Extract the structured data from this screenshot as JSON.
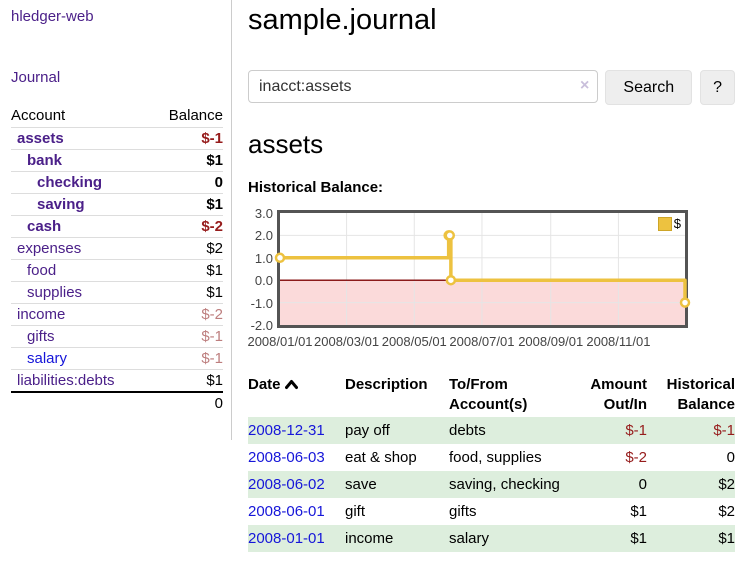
{
  "sidebar": {
    "brand": "hledger-web",
    "nav": {
      "journal": "Journal"
    },
    "table": {
      "account_header": "Account",
      "balance_header": "Balance"
    },
    "accounts": [
      {
        "name": "assets",
        "indent": 1,
        "bold": true,
        "link_color": "purple",
        "balance": "$-1",
        "balance_class": "neg"
      },
      {
        "name": "bank",
        "indent": 2,
        "bold": true,
        "link_color": "purple",
        "balance": "$1",
        "balance_class": "pos"
      },
      {
        "name": "checking",
        "indent": 3,
        "bold": true,
        "link_color": "purple",
        "balance": "0",
        "balance_class": "pos"
      },
      {
        "name": "saving",
        "indent": 3,
        "bold": true,
        "link_color": "purple",
        "balance": "$1",
        "balance_class": "pos"
      },
      {
        "name": "cash",
        "indent": 2,
        "bold": true,
        "link_color": "purple",
        "balance": "$-2",
        "balance_class": "neg"
      },
      {
        "name": "expenses",
        "indent": 1,
        "bold": false,
        "link_color": "purple",
        "balance": "$2",
        "balance_class": "pos"
      },
      {
        "name": "food",
        "indent": 2,
        "bold": false,
        "link_color": "purple",
        "balance": "$1",
        "balance_class": "pos"
      },
      {
        "name": "supplies",
        "indent": 2,
        "bold": false,
        "link_color": "purple",
        "balance": "$1",
        "balance_class": "pos"
      },
      {
        "name": "income",
        "indent": 1,
        "bold": false,
        "link_color": "purple",
        "balance": "$-2",
        "balance_class": "neg-faded"
      },
      {
        "name": "gifts",
        "indent": 2,
        "bold": false,
        "link_color": "purple",
        "balance": "$-1",
        "balance_class": "neg-faded"
      },
      {
        "name": "salary",
        "indent": 2,
        "bold": false,
        "link_color": "blue",
        "balance": "$-1",
        "balance_class": "neg-faded"
      },
      {
        "name": "liabilities:debts",
        "indent": 1,
        "bold": false,
        "link_color": "purple",
        "balance": "$1",
        "balance_class": "pos"
      }
    ],
    "total": "0"
  },
  "header": {
    "title": "sample.journal"
  },
  "search": {
    "query": "inacct:assets",
    "clear_icon": "×",
    "button_label": "Search",
    "help_label": "?"
  },
  "account_page": {
    "heading": "assets",
    "chart_section_title": "Historical Balance:"
  },
  "chart_data": {
    "type": "line",
    "title": "Historical Balance",
    "step": "after",
    "x_start": "2008-01-01",
    "x_end": "2008-12-31",
    "x_tick_labels": [
      "2008/01/01",
      "2008/03/01",
      "2008/05/01",
      "2008/07/01",
      "2008/09/01",
      "2008/11/01"
    ],
    "x_tick_dates": [
      "2008-01-01",
      "2008-03-01",
      "2008-05-01",
      "2008-07-01",
      "2008-09-01",
      "2008-11-01"
    ],
    "y_ticks": [
      "3.0",
      "2.0",
      "1.0",
      "0.0",
      "-1.0",
      "-2.0"
    ],
    "ylim": [
      -2,
      3
    ],
    "grid": true,
    "legend_position": "top-right",
    "series": [
      {
        "name": "$",
        "color": "#edc240",
        "points": [
          {
            "date": "2008-01-01",
            "value": 1
          },
          {
            "date": "2008-06-01",
            "value": 2
          },
          {
            "date": "2008-06-02",
            "value": 2
          },
          {
            "date": "2008-06-03",
            "value": 0
          },
          {
            "date": "2008-12-31",
            "value": -1
          }
        ]
      }
    ],
    "negative_region_fill": "#fbdada",
    "zero_line_color": "#8b1a1a",
    "grid_line_color": "#e5e5e5",
    "border_color": "#545454"
  },
  "register": {
    "headers": {
      "date": "Date",
      "description": "Description",
      "accounts": "To/From Account(s)",
      "amount": "Amount Out/In",
      "balance": "Historical Balance"
    },
    "sort_icon": "chevron-up",
    "rows": [
      {
        "date": "2008-12-31",
        "description": "pay off",
        "accounts": "debts",
        "amount": "$-1",
        "amount_class": "neg",
        "balance": "$-1",
        "balance_class": "neg",
        "shaded": true
      },
      {
        "date": "2008-06-03",
        "description": "eat & shop",
        "accounts": "food, supplies",
        "amount": "$-2",
        "amount_class": "neg",
        "balance": "0",
        "balance_class": "pos",
        "shaded": false
      },
      {
        "date": "2008-06-02",
        "description": "save",
        "accounts": "saving, checking",
        "amount": "0",
        "amount_class": "pos",
        "balance": "$2",
        "balance_class": "pos",
        "shaded": true
      },
      {
        "date": "2008-06-01",
        "description": "gift",
        "accounts": "gifts",
        "amount": "$1",
        "amount_class": "pos",
        "balance": "$2",
        "balance_class": "pos",
        "shaded": false
      },
      {
        "date": "2008-01-01",
        "description": "income",
        "accounts": "salary",
        "amount": "$1",
        "amount_class": "pos",
        "balance": "$1",
        "balance_class": "pos",
        "shaded": true
      }
    ]
  },
  "colors": {
    "link_purple": "#4b2089",
    "link_blue": "#1616d9",
    "negative_strong": "#961c1c",
    "negative_faded": "#bd7e7e",
    "row_shade_green": "#ddeedd",
    "series_yellow": "#edc240"
  }
}
